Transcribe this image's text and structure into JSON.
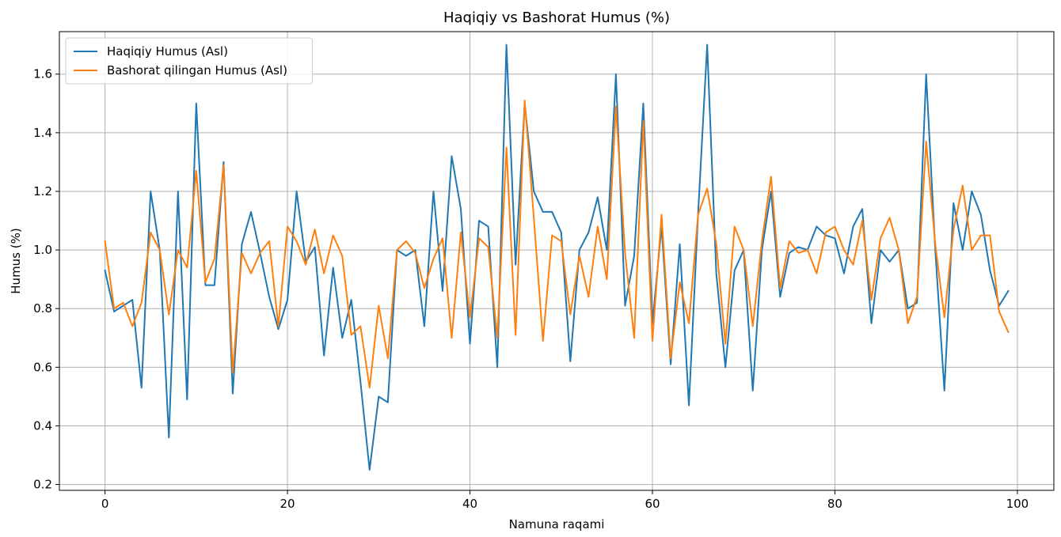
{
  "chart_data": {
    "type": "line",
    "title": "Haqiqiy vs Bashorat Humus (%)",
    "xlabel": "Namuna raqami",
    "ylabel": "Humus (%)",
    "xlim": [
      -5,
      104
    ],
    "ylim": [
      0.18,
      1.745
    ],
    "xticks": [
      0,
      20,
      40,
      60,
      80,
      100
    ],
    "xtick_labels": [
      "0",
      "20",
      "40",
      "60",
      "80",
      "100"
    ],
    "yticks": [
      0.2,
      0.4,
      0.6,
      0.8,
      1.0,
      1.2,
      1.4,
      1.6
    ],
    "ytick_labels": [
      "0.2",
      "0.4",
      "0.6",
      "0.8",
      "1.0",
      "1.2",
      "1.4",
      "1.6"
    ],
    "grid": true,
    "legend_position": "top-left",
    "series": [
      {
        "name": "Haqiqiy Humus (Asl)",
        "color": "#1f77b4",
        "values": [
          0.93,
          0.79,
          0.81,
          0.83,
          0.53,
          1.2,
          1.0,
          0.36,
          1.2,
          0.49,
          1.5,
          0.88,
          0.88,
          1.3,
          0.51,
          1.02,
          1.13,
          0.99,
          0.84,
          0.73,
          0.83,
          1.2,
          0.96,
          1.01,
          0.64,
          0.94,
          0.7,
          0.83,
          0.55,
          0.25,
          0.5,
          0.48,
          1.0,
          0.98,
          1.0,
          0.74,
          1.2,
          0.86,
          1.32,
          1.14,
          0.68,
          1.1,
          1.08,
          0.6,
          1.7,
          0.95,
          1.5,
          1.2,
          1.13,
          1.13,
          1.06,
          0.62,
          1.0,
          1.06,
          1.18,
          1.0,
          1.6,
          0.81,
          0.98,
          1.5,
          0.75,
          1.08,
          0.61,
          1.02,
          0.47,
          1.12,
          1.7,
          0.92,
          0.6,
          0.93,
          1.0,
          0.52,
          1.0,
          1.2,
          0.84,
          0.99,
          1.01,
          1.0,
          1.08,
          1.05,
          1.04,
          0.92,
          1.08,
          1.14,
          0.75,
          1.0,
          0.96,
          1.0,
          0.8,
          0.82,
          1.6,
          1.0,
          0.52,
          1.16,
          1.0,
          1.2,
          1.12,
          0.93,
          0.81,
          0.86
        ]
      },
      {
        "name": "Bashorat qilingan Humus (Asl)",
        "color": "#ff7f0e",
        "values": [
          1.03,
          0.8,
          0.82,
          0.74,
          0.82,
          1.06,
          1.0,
          0.78,
          1.0,
          0.94,
          1.27,
          0.89,
          0.97,
          1.29,
          0.58,
          0.99,
          0.92,
          0.99,
          1.03,
          0.74,
          1.08,
          1.03,
          0.95,
          1.07,
          0.92,
          1.05,
          0.98,
          0.71,
          0.74,
          0.53,
          0.81,
          0.63,
          1.0,
          1.03,
          0.99,
          0.87,
          0.97,
          1.04,
          0.7,
          1.06,
          0.77,
          1.04,
          1.01,
          0.7,
          1.35,
          0.71,
          1.51,
          1.11,
          0.69,
          1.05,
          1.03,
          0.78,
          0.98,
          0.84,
          1.08,
          0.9,
          1.49,
          0.99,
          0.7,
          1.44,
          0.69,
          1.12,
          0.63,
          0.89,
          0.75,
          1.12,
          1.21,
          1.02,
          0.68,
          1.08,
          1.0,
          0.74,
          1.03,
          1.25,
          0.87,
          1.03,
          0.99,
          1.0,
          0.92,
          1.06,
          1.08,
          1.0,
          0.95,
          1.1,
          0.83,
          1.04,
          1.11,
          1.0,
          0.75,
          0.84,
          1.37,
          1.02,
          0.77,
          1.07,
          1.22,
          1.0,
          1.05,
          1.05,
          0.79,
          0.72
        ]
      }
    ]
  }
}
